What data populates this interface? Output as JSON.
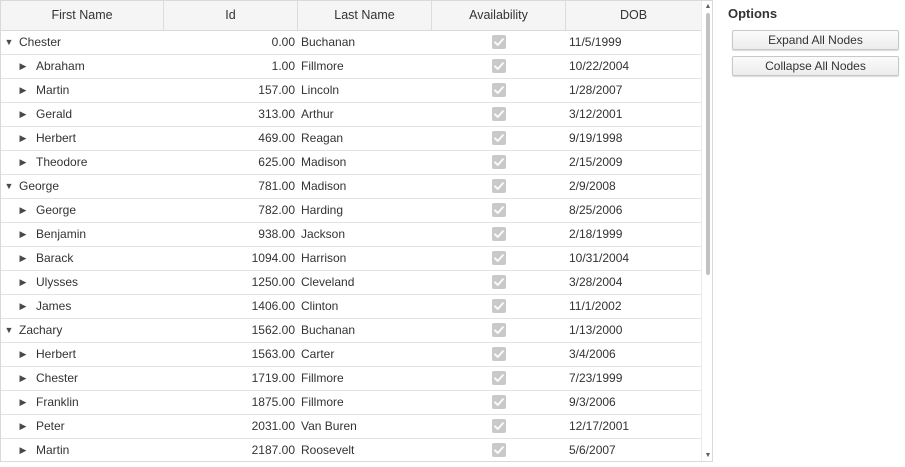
{
  "columns": {
    "first_name": "First Name",
    "id": "Id",
    "last_name": "Last Name",
    "availability": "Availability",
    "dob": "DOB"
  },
  "rows": [
    {
      "level": 0,
      "expanded": true,
      "first": "Chester",
      "id": "0.00",
      "last": "Buchanan",
      "available": true,
      "dob": "11/5/1999"
    },
    {
      "level": 1,
      "expanded": false,
      "first": "Abraham",
      "id": "1.00",
      "last": "Fillmore",
      "available": true,
      "dob": "10/22/2004"
    },
    {
      "level": 1,
      "expanded": false,
      "first": "Martin",
      "id": "157.00",
      "last": "Lincoln",
      "available": true,
      "dob": "1/28/2007"
    },
    {
      "level": 1,
      "expanded": false,
      "first": "Gerald",
      "id": "313.00",
      "last": "Arthur",
      "available": true,
      "dob": "3/12/2001"
    },
    {
      "level": 1,
      "expanded": false,
      "first": "Herbert",
      "id": "469.00",
      "last": "Reagan",
      "available": true,
      "dob": "9/19/1998"
    },
    {
      "level": 1,
      "expanded": false,
      "first": "Theodore",
      "id": "625.00",
      "last": "Madison",
      "available": true,
      "dob": "2/15/2009"
    },
    {
      "level": 0,
      "expanded": true,
      "first": "George",
      "id": "781.00",
      "last": "Madison",
      "available": true,
      "dob": "2/9/2008"
    },
    {
      "level": 1,
      "expanded": false,
      "first": "George",
      "id": "782.00",
      "last": "Harding",
      "available": true,
      "dob": "8/25/2006"
    },
    {
      "level": 1,
      "expanded": false,
      "first": "Benjamin",
      "id": "938.00",
      "last": "Jackson",
      "available": true,
      "dob": "2/18/1999"
    },
    {
      "level": 1,
      "expanded": false,
      "first": "Barack",
      "id": "1094.00",
      "last": "Harrison",
      "available": true,
      "dob": "10/31/2004"
    },
    {
      "level": 1,
      "expanded": false,
      "first": "Ulysses",
      "id": "1250.00",
      "last": "Cleveland",
      "available": true,
      "dob": "3/28/2004"
    },
    {
      "level": 1,
      "expanded": false,
      "first": "James",
      "id": "1406.00",
      "last": "Clinton",
      "available": true,
      "dob": "11/1/2002"
    },
    {
      "level": 0,
      "expanded": true,
      "first": "Zachary",
      "id": "1562.00",
      "last": "Buchanan",
      "available": true,
      "dob": "1/13/2000"
    },
    {
      "level": 1,
      "expanded": false,
      "first": "Herbert",
      "id": "1563.00",
      "last": "Carter",
      "available": true,
      "dob": "3/4/2006"
    },
    {
      "level": 1,
      "expanded": false,
      "first": "Chester",
      "id": "1719.00",
      "last": "Fillmore",
      "available": true,
      "dob": "7/23/1999"
    },
    {
      "level": 1,
      "expanded": false,
      "first": "Franklin",
      "id": "1875.00",
      "last": "Fillmore",
      "available": true,
      "dob": "9/3/2006"
    },
    {
      "level": 1,
      "expanded": false,
      "first": "Peter",
      "id": "2031.00",
      "last": "Van Buren",
      "available": true,
      "dob": "12/17/2001"
    },
    {
      "level": 1,
      "expanded": false,
      "first": "Martin",
      "id": "2187.00",
      "last": "Roosevelt",
      "available": true,
      "dob": "5/6/2007"
    }
  ],
  "options": {
    "title": "Options",
    "expand_all_label": "Expand All Nodes",
    "collapse_all_label": "Collapse All Nodes"
  },
  "colors": {
    "checkbox_disabled": "#c9c9c9",
    "header_bg": "#f5f5f5",
    "row_border": "#e3e3e3"
  },
  "icons": {
    "expanded": "triangle-down-icon",
    "collapsed": "triangle-right-icon",
    "check": "check-icon"
  }
}
